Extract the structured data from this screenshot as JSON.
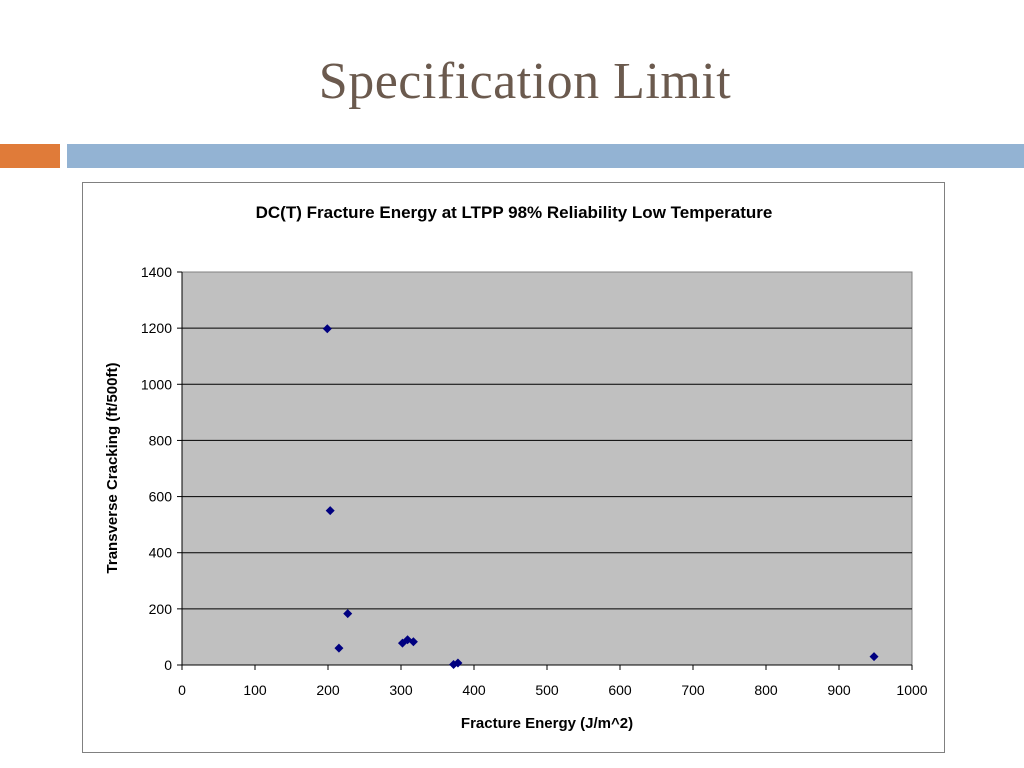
{
  "slide": {
    "title": "Specification Limit"
  },
  "colors": {
    "title": "#6b5a4e",
    "accent_orange": "#e07b39",
    "accent_blue": "#93b3d3",
    "plot_background": "#c0c0c0",
    "marker": "#000080"
  },
  "chart_data": {
    "type": "scatter",
    "title": "DC(T) Fracture Energy at LTPP 98% Reliability Low Temperature",
    "xlabel": "Fracture Energy (J/m^2)",
    "ylabel": "Transverse Cracking (ft/500ft)",
    "xlim": [
      0,
      1000
    ],
    "ylim": [
      0,
      1400
    ],
    "xticks": [
      0,
      100,
      200,
      300,
      400,
      500,
      600,
      700,
      800,
      900,
      1000
    ],
    "yticks": [
      0,
      200,
      400,
      600,
      800,
      1000,
      1200,
      1400
    ],
    "grid": "horizontal",
    "legend": "none",
    "marker": "diamond",
    "points": [
      {
        "x": 199,
        "y": 1198
      },
      {
        "x": 203,
        "y": 550
      },
      {
        "x": 215,
        "y": 60
      },
      {
        "x": 227,
        "y": 183
      },
      {
        "x": 302,
        "y": 78
      },
      {
        "x": 309,
        "y": 90
      },
      {
        "x": 317,
        "y": 83
      },
      {
        "x": 372,
        "y": 2
      },
      {
        "x": 378,
        "y": 7
      },
      {
        "x": 948,
        "y": 30
      }
    ]
  }
}
